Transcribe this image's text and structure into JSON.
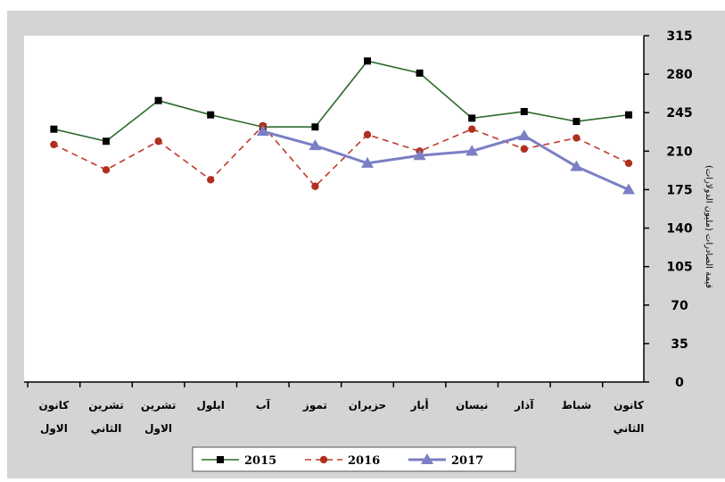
{
  "chart_data": {
    "type": "line",
    "title": "",
    "xlabel": "",
    "ylabel": "قيمة الصادرات (مليون الدولارات)",
    "ylim": [
      0,
      315
    ],
    "yticks": [
      0,
      35,
      70,
      105,
      140,
      175,
      210,
      245,
      280,
      315
    ],
    "y_axis_side": "right",
    "x_direction": "right-to-left",
    "grid": false,
    "legend_position": "bottom",
    "categories": [
      [
        "كانون",
        "الثاني"
      ],
      [
        "شباط"
      ],
      [
        "آذار"
      ],
      [
        "نيسان"
      ],
      [
        "أيار"
      ],
      [
        "حزيران"
      ],
      [
        "تموز"
      ],
      [
        "آب"
      ],
      [
        "ايلول"
      ],
      [
        "تشرين",
        "الاول"
      ],
      [
        "تشرين",
        "الثاني"
      ],
      [
        "كانون",
        "الاول"
      ]
    ],
    "series": [
      {
        "name": "2015",
        "color": "#2e6b2e",
        "marker": "square",
        "dash": "solid",
        "values": [
          243,
          237,
          246,
          240,
          281,
          292,
          232,
          232,
          243,
          256,
          219,
          230
        ]
      },
      {
        "name": "2016",
        "color": "#c0392b",
        "marker": "circle",
        "dash": "dashed",
        "values": [
          199,
          222,
          212,
          230,
          210,
          225,
          178,
          233,
          184,
          219,
          193,
          216
        ]
      },
      {
        "name": "2017",
        "color": "#7b7fc4",
        "marker": "triangle",
        "dash": "solid",
        "values": [
          175,
          196,
          224,
          210,
          206,
          199,
          215,
          228,
          null,
          null,
          null,
          null
        ]
      }
    ]
  }
}
